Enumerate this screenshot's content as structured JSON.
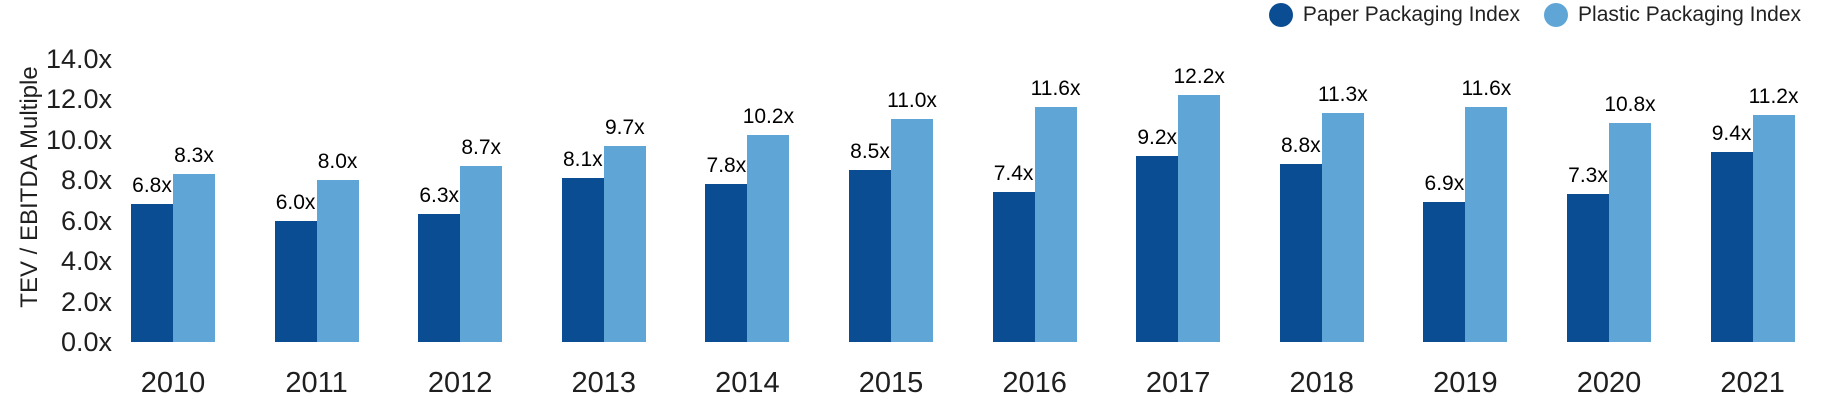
{
  "chart_data": {
    "type": "bar",
    "title": "",
    "ylabel": "TEV / EBITDA Multiple",
    "xlabel": "",
    "ylim": [
      0,
      14
    ],
    "ytick_step": 2,
    "yticks": [
      "0.0x",
      "2.0x",
      "4.0x",
      "6.0x",
      "8.0x",
      "10.0x",
      "12.0x",
      "14.0x"
    ],
    "grid": false,
    "legend_position": "top-right",
    "categories": [
      "2010",
      "2011",
      "2012",
      "2013",
      "2014",
      "2015",
      "2016",
      "2017",
      "2018",
      "2019",
      "2020",
      "2021"
    ],
    "series": [
      {
        "name": "Paper Packaging Index",
        "color": "#0b4d92",
        "values": [
          6.8,
          6.0,
          6.3,
          8.1,
          7.8,
          8.5,
          7.4,
          9.2,
          8.8,
          6.9,
          7.3,
          9.4
        ],
        "labels": [
          "6.8x",
          "6.0x",
          "6.3x",
          "8.1x",
          "7.8x",
          "8.5x",
          "7.4x",
          "9.2x",
          "8.8x",
          "6.9x",
          "7.3x",
          "9.4x"
        ]
      },
      {
        "name": "Plastic Packaging Index",
        "color": "#5fa5d6",
        "values": [
          8.3,
          8.0,
          8.7,
          9.7,
          10.2,
          11.0,
          11.6,
          12.2,
          11.3,
          11.6,
          10.8,
          11.2
        ],
        "labels": [
          "8.3x",
          "8.0x",
          "8.7x",
          "9.7x",
          "10.2x",
          "11.0x",
          "11.6x",
          "12.2x",
          "11.3x",
          "11.6x",
          "10.8x",
          "11.2x"
        ]
      }
    ]
  },
  "legend": {
    "items": [
      {
        "label": "Paper Packaging Index",
        "color": "#0b4d92"
      },
      {
        "label": "Plastic Packaging Index",
        "color": "#5fa5d6"
      }
    ]
  }
}
